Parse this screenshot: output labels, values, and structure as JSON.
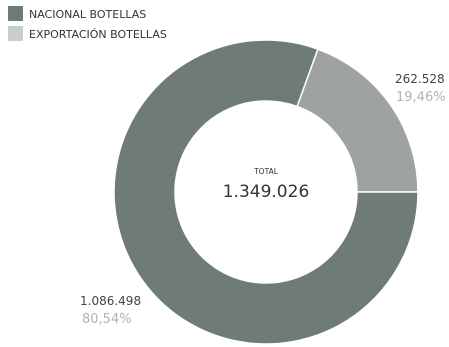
{
  "chart_data": {
    "type": "pie",
    "center_label": "TOTAL",
    "total_label": "1.349.026",
    "legend_position": "top-left",
    "slices": [
      {
        "name": "NACIONAL BOTELLAS",
        "value": 1086498,
        "value_label": "1.086.498",
        "percent": 80.54,
        "percent_label": "80,54%",
        "color": "#6e7b76"
      },
      {
        "name": "EXPORTACIÓN BOTELLAS",
        "value": 262528,
        "value_label": "262.528",
        "percent": 19.46,
        "percent_label": "19,46%",
        "color": "#9ea39f"
      }
    ]
  }
}
